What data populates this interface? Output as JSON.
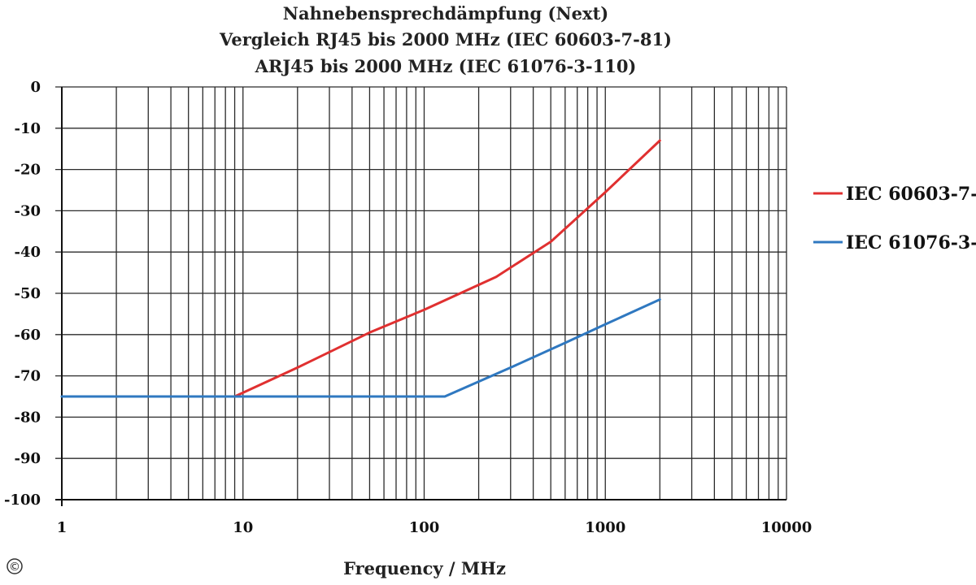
{
  "chart_data": {
    "type": "line",
    "title_lines": [
      "Nahnebensprechdämpfung (Next)",
      "Vergleich RJ45 bis 2000 MHz  (IEC 60603-7-81)",
      "ARJ45 bis 2000 MHz  (IEC 61076-3-110)"
    ],
    "xlabel": "Frequency / MHz",
    "ylabel": "",
    "x_scale": "log",
    "xlim": [
      1,
      10000
    ],
    "ylim": [
      -100,
      0
    ],
    "x_ticks": [
      1,
      10,
      100,
      1000,
      10000
    ],
    "x_tick_labels": [
      "1",
      "10",
      "100",
      "1000",
      "10000"
    ],
    "y_ticks": [
      0,
      -10,
      -20,
      -30,
      -40,
      -50,
      -60,
      -70,
      -80,
      -90,
      -100
    ],
    "y_tick_labels": [
      "0",
      "-10",
      "-20",
      "-30",
      "-40",
      "-50",
      "-60",
      "-70",
      "-80",
      "-90",
      "-100"
    ],
    "grid": true,
    "legend_position": "right",
    "series": [
      {
        "name": "IEC 60603-7-",
        "color": "#e03030",
        "points": [
          [
            9,
            -75
          ],
          [
            20,
            -68
          ],
          [
            50,
            -59.5
          ],
          [
            100,
            -54
          ],
          [
            250,
            -46
          ],
          [
            500,
            -37.5
          ],
          [
            1000,
            -25.5
          ],
          [
            2000,
            -13
          ]
        ]
      },
      {
        "name": "IEC 61076-3-",
        "color": "#2f78c0",
        "points": [
          [
            1,
            -75
          ],
          [
            10,
            -75
          ],
          [
            130,
            -75
          ],
          [
            300,
            -68
          ],
          [
            600,
            -62
          ],
          [
            1000,
            -57.5
          ],
          [
            2000,
            -51.5
          ]
        ]
      }
    ]
  },
  "copyright_symbol": "©"
}
